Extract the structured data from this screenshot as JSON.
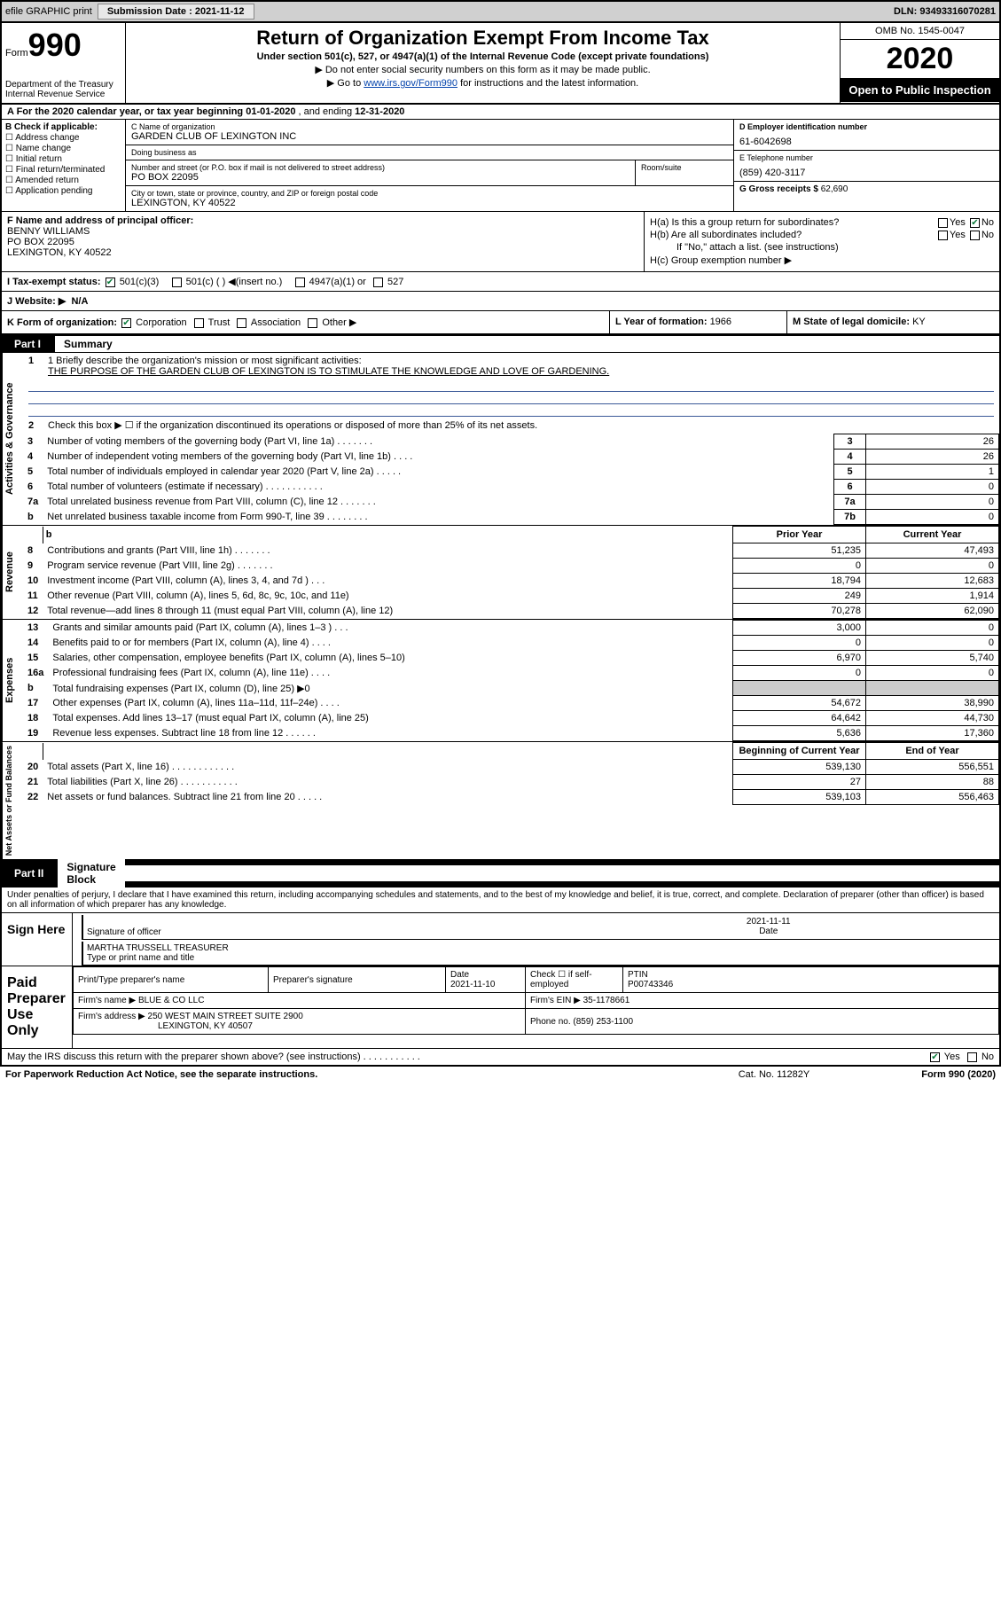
{
  "topbar": {
    "efile_label": "efile GRAPHIC print",
    "submission_label": "Submission Date : 2021-11-12",
    "dln_label": "DLN: 93493316070281"
  },
  "header": {
    "form_word": "Form",
    "form_number": "990",
    "title": "Return of Organization Exempt From Income Tax",
    "subtitle": "Under section 501(c), 527, or 4947(a)(1) of the Internal Revenue Code (except private foundations)",
    "instr1": "▶ Do not enter social security numbers on this form as it may be made public.",
    "instr2_pre": "▶ Go to ",
    "instr2_link": "www.irs.gov/Form990",
    "instr2_post": " for instructions and the latest information.",
    "omb": "OMB No. 1545-0047",
    "year": "2020",
    "open_public": "Open to Public Inspection",
    "dept1": "Department of the Treasury",
    "dept2": "Internal Revenue Service"
  },
  "lineA": {
    "prefix": "A For the 2020 calendar year, or tax year beginning ",
    "begin": "01-01-2020",
    "mid": " , and ending ",
    "end": "12-31-2020"
  },
  "colB": {
    "header": "B Check if applicable:",
    "items": [
      "Address change",
      "Name change",
      "Initial return",
      "Final return/terminated",
      "Amended return",
      "Application pending"
    ]
  },
  "colC": {
    "name_lbl": "C Name of organization",
    "name": "GARDEN CLUB OF LEXINGTON INC",
    "dba_lbl": "Doing business as",
    "dba": "",
    "street_lbl": "Number and street (or P.O. box if mail is not delivered to street address)",
    "street": "PO BOX 22095",
    "room_lbl": "Room/suite",
    "city_lbl": "City or town, state or province, country, and ZIP or foreign postal code",
    "city": "LEXINGTON, KY  40522"
  },
  "colDE": {
    "d_lbl": "D Employer identification number",
    "ein": "61-6042698",
    "e_lbl": "E Telephone number",
    "phone": "(859) 420-3117",
    "g_lbl": "G Gross receipts $ ",
    "gross": "62,690"
  },
  "colF": {
    "lbl": "F Name and address of principal officer:",
    "name": "BENNY WILLIAMS",
    "street": "PO BOX 22095",
    "city": "LEXINGTON, KY  40522"
  },
  "colH": {
    "ha": "H(a)  Is this a group return for subordinates?",
    "hb": "H(b)  Are all subordinates included?",
    "hb_note": "If \"No,\" attach a list. (see instructions)",
    "hc": "H(c)  Group exemption number ▶",
    "yes": "Yes",
    "no": "No"
  },
  "rowI": {
    "lbl": "I    Tax-exempt status:",
    "opt1": "501(c)(3)",
    "opt2": "501(c) (   ) ◀(insert no.)",
    "opt3": "4947(a)(1) or",
    "opt4": "527"
  },
  "rowJ": {
    "lbl": "J   Website: ▶",
    "val": "N/A"
  },
  "rowK": {
    "lbl": "K Form of organization:",
    "corp": "Corporation",
    "trust": "Trust",
    "assoc": "Association",
    "other": "Other ▶",
    "l_lbl": "L Year of formation: ",
    "l_val": "1966",
    "m_lbl": "M State of legal domicile: ",
    "m_val": "KY"
  },
  "part1": {
    "num": "Part I",
    "title": "Summary"
  },
  "summary": {
    "tab1": "Activities & Governance",
    "tab2": "Revenue",
    "tab3": "Expenses",
    "tab4": "Net Assets or Fund Balances",
    "q1_lbl": "1  Briefly describe the organization's mission or most significant activities:",
    "q1_val": "THE PURPOSE OF THE GARDEN CLUB OF LEXINGTON IS TO STIMULATE THE KNOWLEDGE AND LOVE OF GARDENING.",
    "q2": "Check this box ▶ ☐  if the organization discontinued its operations or disposed of more than 25% of its net assets.",
    "col_prior": "Prior Year",
    "col_current": "Current Year",
    "col_begin": "Beginning of Current Year",
    "col_end": "End of Year",
    "rows_gov": [
      {
        "n": "3",
        "d": "Number of voting members of the governing body (Part VI, line 1a)   .    .    .    .    .    .    .",
        "box": "3",
        "v": "26"
      },
      {
        "n": "4",
        "d": "Number of independent voting members of the governing body (Part VI, line 1b)   .    .    .    .",
        "box": "4",
        "v": "26"
      },
      {
        "n": "5",
        "d": "Total number of individuals employed in calendar year 2020 (Part V, line 2a)   .    .    .    .    .",
        "box": "5",
        "v": "1"
      },
      {
        "n": "6",
        "d": "Total number of volunteers (estimate if necessary)   .    .    .    .    .    .    .    .    .    .    .",
        "box": "6",
        "v": "0"
      },
      {
        "n": "7a",
        "d": "Total unrelated business revenue from Part VIII, column (C), line 12   .    .    .    .    .    .    .",
        "box": "7a",
        "v": "0"
      },
      {
        "n": "b",
        "d": "Net unrelated business taxable income from Form 990-T, line 39   .    .    .    .    .    .    .    .",
        "box": "7b",
        "v": "0"
      }
    ],
    "rows_rev": [
      {
        "n": "8",
        "d": "Contributions and grants (Part VIII, line 1h)   .    .    .    .    .    .    .",
        "p": "51,235",
        "c": "47,493"
      },
      {
        "n": "9",
        "d": "Program service revenue (Part VIII, line 2g)   .    .    .    .    .    .    .",
        "p": "0",
        "c": "0"
      },
      {
        "n": "10",
        "d": "Investment income (Part VIII, column (A), lines 3, 4, and 7d )   .    .    .",
        "p": "18,794",
        "c": "12,683"
      },
      {
        "n": "11",
        "d": "Other revenue (Part VIII, column (A), lines 5, 6d, 8c, 9c, 10c, and 11e)",
        "p": "249",
        "c": "1,914"
      },
      {
        "n": "12",
        "d": "Total revenue—add lines 8 through 11 (must equal Part VIII, column (A), line 12)",
        "p": "70,278",
        "c": "62,090"
      }
    ],
    "rows_exp": [
      {
        "n": "13",
        "d": "Grants and similar amounts paid (Part IX, column (A), lines 1–3 )   .    .    .",
        "p": "3,000",
        "c": "0"
      },
      {
        "n": "14",
        "d": "Benefits paid to or for members (Part IX, column (A), line 4)   .    .    .    .",
        "p": "0",
        "c": "0"
      },
      {
        "n": "15",
        "d": "Salaries, other compensation, employee benefits (Part IX, column (A), lines 5–10)",
        "p": "6,970",
        "c": "5,740"
      },
      {
        "n": "16a",
        "d": "Professional fundraising fees (Part IX, column (A), line 11e)   .    .    .    .",
        "p": "0",
        "c": "0"
      },
      {
        "n": "b",
        "d": "Total fundraising expenses (Part IX, column (D), line 25) ▶0",
        "p": "",
        "c": "",
        "shade": true
      },
      {
        "n": "17",
        "d": "Other expenses (Part IX, column (A), lines 11a–11d, 11f–24e)   .    .    .    .",
        "p": "54,672",
        "c": "38,990"
      },
      {
        "n": "18",
        "d": "Total expenses. Add lines 13–17 (must equal Part IX, column (A), line 25)",
        "p": "64,642",
        "c": "44,730"
      },
      {
        "n": "19",
        "d": "Revenue less expenses. Subtract line 18 from line 12   .    .    .    .    .    .",
        "p": "5,636",
        "c": "17,360"
      }
    ],
    "rows_net": [
      {
        "n": "20",
        "d": "Total assets (Part X, line 16)   .    .    .    .    .    .    .    .    .    .    .    .",
        "p": "539,130",
        "c": "556,551"
      },
      {
        "n": "21",
        "d": "Total liabilities (Part X, line 26)   .    .    .    .    .    .    .    .    .    .    .",
        "p": "27",
        "c": "88"
      },
      {
        "n": "22",
        "d": "Net assets or fund balances. Subtract line 21 from line 20   .    .    .    .    .",
        "p": "539,103",
        "c": "556,463"
      }
    ]
  },
  "part2": {
    "num": "Part II",
    "title": "Signature Block"
  },
  "sig": {
    "declaration": "Under penalties of perjury, I declare that I have examined this return, including accompanying schedules and statements, and to the best of my knowledge and belief, it is true, correct, and complete. Declaration of preparer (other than officer) is based on all information of which preparer has any knowledge.",
    "sign_here": "Sign Here",
    "sig_officer": "Signature of officer",
    "sig_date": "2021-11-11",
    "date_lbl": "Date",
    "officer_name": "MARTHA TRUSSELL  TREASURER",
    "name_title_lbl": "Type or print name and title",
    "paid_prep": "Paid Preparer Use Only",
    "h_print": "Print/Type preparer's name",
    "h_sig": "Preparer's signature",
    "h_date": "Date",
    "prep_date": "2021-11-10",
    "h_check": "Check ☐ if self-employed",
    "h_ptin": "PTIN",
    "ptin": "P00743346",
    "firm_name_lbl": "Firm's name    ▶ ",
    "firm_name": "BLUE & CO LLC",
    "firm_ein_lbl": "Firm's EIN ▶ ",
    "firm_ein": "35-1178661",
    "firm_addr_lbl": "Firm's address ▶ ",
    "firm_addr1": "250 WEST MAIN STREET SUITE 2900",
    "firm_addr2": "LEXINGTON, KY  40507",
    "firm_phone_lbl": "Phone no. ",
    "firm_phone": "(859) 253-1100",
    "discuss": "May the IRS discuss this return with the preparer shown above? (see instructions)   .    .    .    .    .    .    .    .    .    .    .",
    "yes": "Yes",
    "no": "No"
  },
  "footer": {
    "paperwork": "For Paperwork Reduction Act Notice, see the separate instructions.",
    "cat": "Cat. No. 11282Y",
    "form": "Form 990 (2020)"
  },
  "colors": {
    "link": "#0645ad",
    "check_green": "#0a7a3a",
    "underline_blue": "#3b5998",
    "topbar_bg": "#d0d0d0",
    "shade": "#cccccc"
  }
}
